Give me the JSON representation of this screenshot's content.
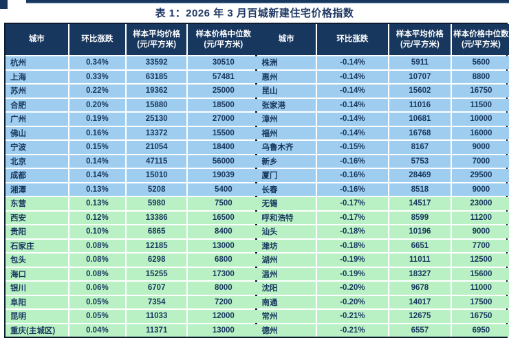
{
  "title": "表 1：2026 年 3 月百城新建住宅价格指数",
  "colors": {
    "header_bg": "#17375E",
    "row_blue": "#9FCDEF",
    "row_green": "#BAF1C4",
    "text": "#17375E",
    "border": "#0C1B2E"
  },
  "columns": [
    {
      "label": "城市",
      "sub": ""
    },
    {
      "label": "环比涨跌",
      "sub": ""
    },
    {
      "label": "样本平均价格",
      "sub": "(元/平方米)"
    },
    {
      "label": "样本价格中位数",
      "sub": "(元/平方米)"
    }
  ],
  "chart_data": {
    "type": "table",
    "title": "表 1：2026 年 3 月百城新建住宅价格指数",
    "columns": [
      "城市",
      "环比涨跌",
      "样本平均价格(元/平方米)",
      "样本价格中位数(元/平方米)"
    ],
    "note_layout": "two side-by-side tables; first 10 rows of each shaded blue, last 10 shaded green"
  },
  "tables": [
    {
      "name": "left-table",
      "blue_rows": 10,
      "rows": [
        [
          "杭州",
          "0.34%",
          "33592",
          "30510"
        ],
        [
          "上海",
          "0.33%",
          "63185",
          "57481"
        ],
        [
          "苏州",
          "0.22%",
          "19362",
          "25000"
        ],
        [
          "合肥",
          "0.20%",
          "15880",
          "18500"
        ],
        [
          "广州",
          "0.19%",
          "25130",
          "27000"
        ],
        [
          "佛山",
          "0.16%",
          "13372",
          "15500"
        ],
        [
          "宁波",
          "0.15%",
          "21054",
          "18400"
        ],
        [
          "北京",
          "0.14%",
          "47115",
          "56000"
        ],
        [
          "成都",
          "0.14%",
          "15010",
          "19039"
        ],
        [
          "湘潭",
          "0.13%",
          "5208",
          "5400"
        ],
        [
          "东营",
          "0.13%",
          "5980",
          "7500"
        ],
        [
          "西安",
          "0.12%",
          "13386",
          "16500"
        ],
        [
          "贵阳",
          "0.10%",
          "6865",
          "8400"
        ],
        [
          "石家庄",
          "0.08%",
          "12185",
          "13000"
        ],
        [
          "包头",
          "0.08%",
          "6298",
          "6800"
        ],
        [
          "海口",
          "0.08%",
          "15255",
          "17300"
        ],
        [
          "银川",
          "0.06%",
          "6707",
          "8000"
        ],
        [
          "阜阳",
          "0.05%",
          "7354",
          "7200"
        ],
        [
          "昆明",
          "0.05%",
          "11033",
          "12000"
        ],
        [
          "重庆(主城区)",
          "0.04%",
          "11371",
          "13000"
        ]
      ]
    },
    {
      "name": "right-table",
      "blue_rows": 10,
      "rows": [
        [
          "株洲",
          "-0.14%",
          "5911",
          "5600"
        ],
        [
          "惠州",
          "-0.14%",
          "10707",
          "8800"
        ],
        [
          "昆山",
          "-0.14%",
          "15602",
          "16750"
        ],
        [
          "张家港",
          "-0.14%",
          "11016",
          "11500"
        ],
        [
          "漳州",
          "-0.14%",
          "10681",
          "10000"
        ],
        [
          "福州",
          "-0.14%",
          "16768",
          "16000"
        ],
        [
          "乌鲁木齐",
          "-0.15%",
          "8167",
          "9000"
        ],
        [
          "新乡",
          "-0.16%",
          "5753",
          "7000"
        ],
        [
          "厦门",
          "-0.16%",
          "28469",
          "29500"
        ],
        [
          "长春",
          "-0.16%",
          "8518",
          "9000"
        ],
        [
          "无锡",
          "-0.17%",
          "14517",
          "23000"
        ],
        [
          "呼和浩特",
          "-0.17%",
          "8599",
          "11200"
        ],
        [
          "汕头",
          "-0.18%",
          "10196",
          "9000"
        ],
        [
          "潍坊",
          "-0.18%",
          "6651",
          "7700"
        ],
        [
          "湖州",
          "-0.19%",
          "11011",
          "12500"
        ],
        [
          "温州",
          "-0.19%",
          "18327",
          "15600"
        ],
        [
          "沈阳",
          "-0.20%",
          "9678",
          "11000"
        ],
        [
          "南通",
          "-0.20%",
          "14017",
          "17500"
        ],
        [
          "常州",
          "-0.21%",
          "12675",
          "16750"
        ],
        [
          "德州",
          "-0.21%",
          "6557",
          "6950"
        ]
      ]
    }
  ]
}
